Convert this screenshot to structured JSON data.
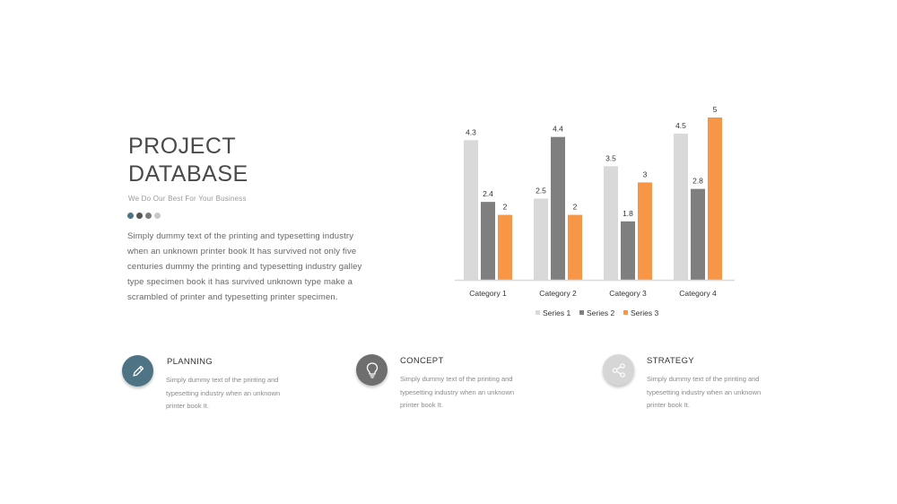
{
  "header": {
    "title_line1": "PROJECT",
    "title_line2": "DATABASE",
    "subtitle": "We Do Our Best For Your Business",
    "dot_colors": [
      "#4e7384",
      "#555555",
      "#7a7a7a",
      "#c8c8c8"
    ],
    "paragraph": "Simply dummy text of the printing and typesetting industry when an unknown printer book It has survived not only five centuries dummy  the printing and typesetting industry galley type specimen book it has survived unknown type make a scrambled of printer and typesetting printer specimen."
  },
  "features": [
    {
      "title": "PLANNING",
      "icon": "pencil-icon",
      "color": "#4e7384",
      "desc": "Simply  dummy text of the printing and typesetting  industry when an unknown printer book It."
    },
    {
      "title": "CONCEPT",
      "icon": "lightbulb-icon",
      "color": "#6e6e6e",
      "desc": "Simply  dummy text of the printing and typesetting  industry when an unknown printer book It."
    },
    {
      "title": "STRATEGY",
      "icon": "share-icon",
      "color": "#d6d6d6",
      "desc": "Simply  dummy text of the printing and typesetting  industry when an unknown printer book It."
    }
  ],
  "chart_data": {
    "type": "bar",
    "categories": [
      "Category 1",
      "Category 2",
      "Category 3",
      "Category 4"
    ],
    "series": [
      {
        "name": "Series 1",
        "color": "#d9d9d9",
        "values": [
          4.3,
          2.5,
          3.5,
          4.5
        ]
      },
      {
        "name": "Series 2",
        "color": "#7f7f7f",
        "values": [
          2.4,
          4.4,
          1.8,
          2.8
        ]
      },
      {
        "name": "Series 3",
        "color": "#f79646",
        "values": [
          2,
          2,
          3,
          5
        ]
      }
    ],
    "ylim": [
      0,
      5
    ],
    "grid": false,
    "legend": "bottom",
    "data_labels": true
  }
}
